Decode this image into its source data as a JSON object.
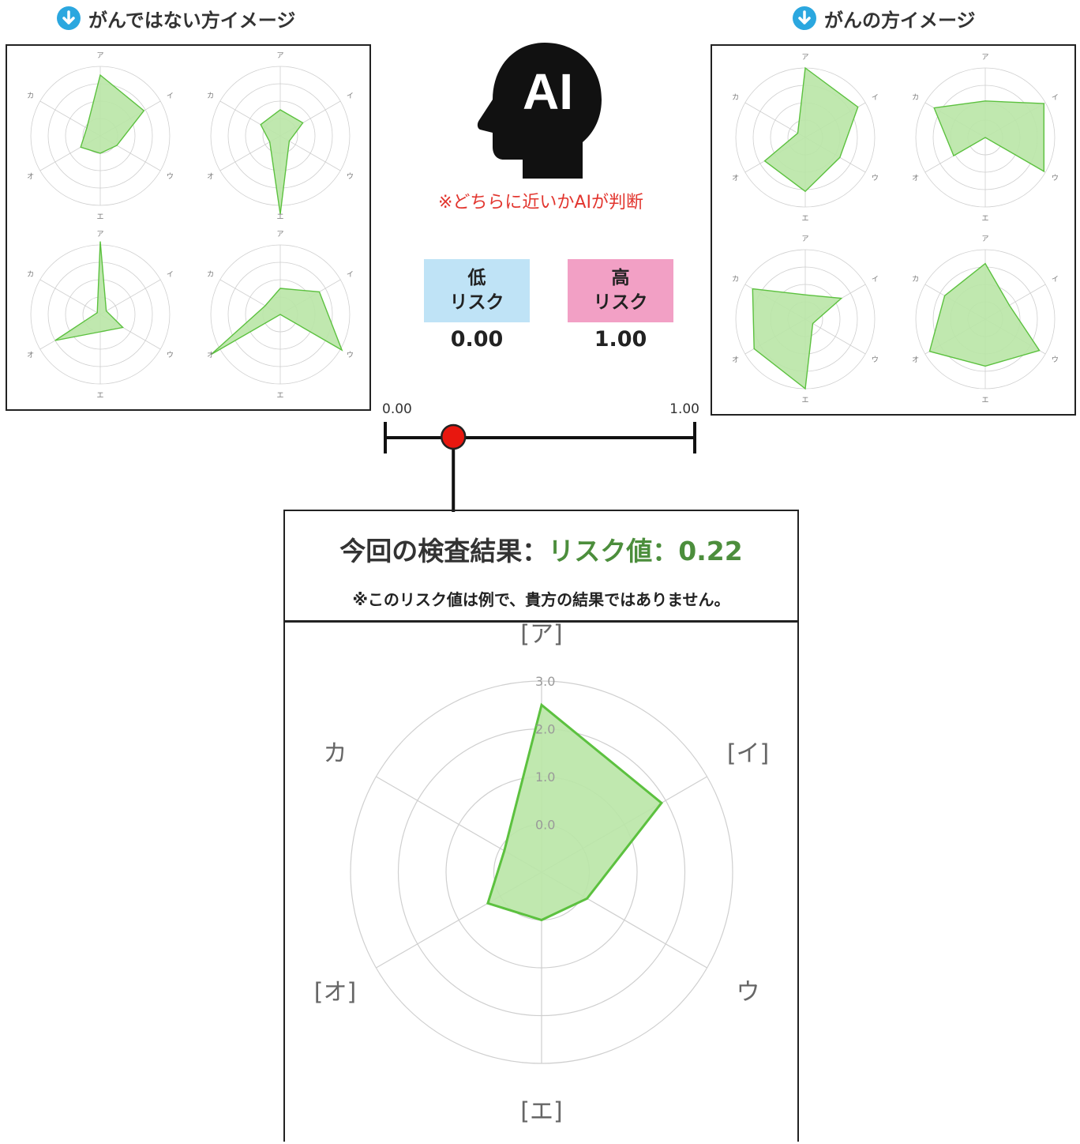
{
  "headers": {
    "non_cancer": "がんではない方イメージ",
    "cancer": "がんの方イメージ"
  },
  "ai_label": "AI",
  "ai_note": "※どちらに近いかAIが判断",
  "risk_boxes": [
    {
      "line1": "低",
      "line2": "リスク",
      "value": "0.00",
      "color": "#bfe3f6"
    },
    {
      "line1": "高",
      "line2": "リスク",
      "value": "1.00",
      "color": "#f2a0c5"
    }
  ],
  "scale": {
    "min_label": "0.00",
    "max_label": "1.00",
    "marker_value": 0.22,
    "marker_color": "#e8170f"
  },
  "result": {
    "title_prefix": "今回の検査結果：",
    "title_value": "リスク値：0.22",
    "subtitle": "※このリスク値は例で、貴方の結果ではありません。"
  },
  "colors": {
    "fill": "#b9e6a6",
    "stroke": "#5cc13f",
    "grid": "#cfcfcf"
  },
  "chart_data": [
    {
      "type": "radar",
      "title": "今回の検査結果",
      "axes": [
        "[ア]",
        "[イ]",
        "ウ",
        "[エ]",
        "[オ]",
        "カ"
      ],
      "rlim": [
        -1,
        3
      ],
      "ticks": [
        "0.0",
        "1.0",
        "2.0",
        "3.0"
      ],
      "values": [
        2.5,
        1.9,
        0.1,
        0.0,
        0.3,
        -0.1
      ]
    },
    {
      "type": "radar",
      "group": "がんではない方イメージ",
      "axes": [
        "ア",
        "イ",
        "ウ",
        "エ",
        "オ",
        "カ"
      ],
      "rlim": [
        -1,
        3
      ],
      "values": [
        2.5,
        1.9,
        0.1,
        0.0,
        0.3,
        -0.1
      ]
    },
    {
      "type": "radar",
      "group": "がんではない方イメージ",
      "axes": [
        "ア",
        "イ",
        "ウ",
        "エ",
        "オ",
        "カ"
      ],
      "rlim": [
        -1,
        3
      ],
      "values": [
        0.5,
        0.5,
        -0.4,
        3.5,
        -0.3,
        0.3
      ]
    },
    {
      "type": "radar",
      "group": "がんではない方イメージ",
      "axes": [
        "ア",
        "イ",
        "ウ",
        "エ",
        "オ",
        "カ"
      ],
      "rlim": [
        -1,
        3
      ],
      "values": [
        3.2,
        -0.6,
        0.5,
        0.0,
        2.0,
        -0.8
      ]
    },
    {
      "type": "radar",
      "group": "がんではない方イメージ",
      "axes": [
        "ア",
        "イ",
        "ウ",
        "エ",
        "オ",
        "カ"
      ],
      "rlim": [
        -1,
        3
      ],
      "values": [
        0.5,
        1.6,
        3.1,
        -1.0,
        3.6,
        0.0
      ]
    },
    {
      "type": "radar",
      "group": "がんの方イメージ",
      "axes": [
        "ア",
        "イ",
        "ウ",
        "エ",
        "オ",
        "カ"
      ],
      "rlim": [
        -1,
        3
      ],
      "values": [
        3.0,
        2.5,
        1.3,
        2.1,
        1.7,
        -0.5
      ]
    },
    {
      "type": "radar",
      "group": "がんの方イメージ",
      "axes": [
        "ア",
        "イ",
        "ウ",
        "エ",
        "オ",
        "カ"
      ],
      "rlim": [
        -1,
        3
      ],
      "values": [
        1.1,
        2.9,
        2.9,
        -1.0,
        1.1,
        2.4
      ]
    },
    {
      "type": "radar",
      "group": "がんの方イメージ",
      "axes": [
        "ア",
        "イ",
        "ウ",
        "エ",
        "オ",
        "カ"
      ],
      "rlim": [
        -1,
        3
      ],
      "values": [
        0.4,
        1.4,
        -0.5,
        3.0,
        2.4,
        2.5
      ]
    },
    {
      "type": "radar",
      "group": "がんの方イメージ",
      "axes": [
        "ア",
        "イ",
        "ウ",
        "エ",
        "オ",
        "カ"
      ],
      "rlim": [
        -1,
        3
      ],
      "values": [
        2.2,
        0.6,
        2.6,
        1.7,
        2.7,
        1.7
      ]
    }
  ]
}
